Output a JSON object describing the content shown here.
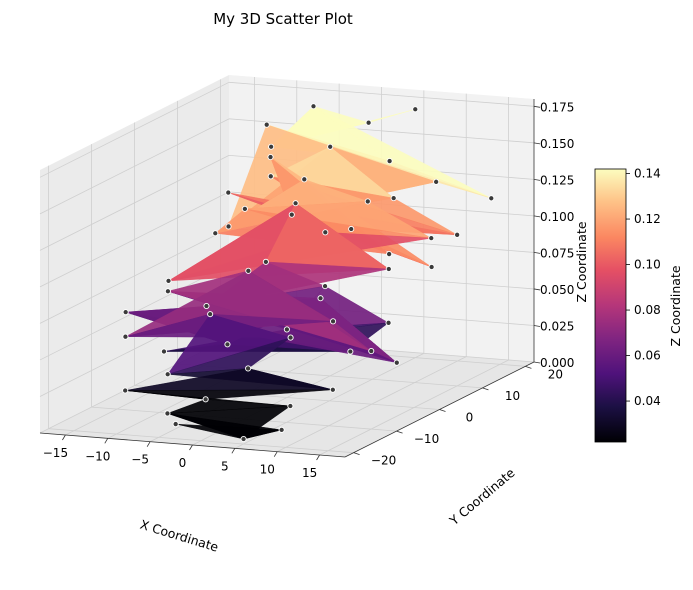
{
  "chart_data": {
    "type": "scatter",
    "title": "My 3D Scatter Plot",
    "xlabel": "X Coordinate",
    "ylabel": "Y Coordinate",
    "zlabel": "Z Coordinate",
    "xlim": [
      -18,
      18
    ],
    "ylim": [
      -22,
      22
    ],
    "zlim": [
      0,
      0.18
    ],
    "xticks": [
      "−15",
      "−10",
      "−5",
      "0",
      "5",
      "10",
      "15"
    ],
    "xtick_values": [
      -15,
      -10,
      -5,
      0,
      5,
      10,
      15
    ],
    "yticks": [
      "−20",
      "−10",
      "0",
      "10",
      "20"
    ],
    "ytick_values": [
      -20,
      -10,
      0,
      10,
      20
    ],
    "zticks": [
      "0.000",
      "0.025",
      "0.050",
      "0.075",
      "0.100",
      "0.125",
      "0.150",
      "0.175"
    ],
    "ztick_values": [
      0,
      0.025,
      0.05,
      0.075,
      0.1,
      0.125,
      0.15,
      0.175
    ],
    "grid": true,
    "surface": "triangulated surface through the scattered points, colored by Z",
    "colormap": "magma",
    "colorbar": {
      "label": "Z Coordinate",
      "range": [
        0.022,
        0.142
      ],
      "ticks": [
        "0.04",
        "0.06",
        "0.08",
        "0.10",
        "0.12",
        "0.14"
      ],
      "tick_values": [
        0.04,
        0.06,
        0.08,
        0.1,
        0.12,
        0.14
      ]
    },
    "marker_color": "#3a3a3a",
    "marker_edge": "#ffffff",
    "points": [
      {
        "x": -14,
        "y": 14,
        "z": 0.09
      },
      {
        "x": -12,
        "y": 10,
        "z": 0.12
      },
      {
        "x": -10,
        "y": 15,
        "z": 0.16
      },
      {
        "x": -8,
        "y": 12,
        "z": 0.13
      },
      {
        "x": -6,
        "y": 18,
        "z": 0.17
      },
      {
        "x": -4,
        "y": 9,
        "z": 0.11
      },
      {
        "x": -2,
        "y": 14,
        "z": 0.15
      },
      {
        "x": 0,
        "y": 19,
        "z": 0.16
      },
      {
        "x": 2,
        "y": 11,
        "z": 0.1
      },
      {
        "x": 4,
        "y": 16,
        "z": 0.14
      },
      {
        "x": 6,
        "y": 13,
        "z": 0.12
      },
      {
        "x": 8,
        "y": 8,
        "z": 0.09
      },
      {
        "x": 10,
        "y": 15,
        "z": 0.13
      },
      {
        "x": 12,
        "y": 10,
        "z": 0.08
      },
      {
        "x": 14,
        "y": 12,
        "z": 0.1
      },
      {
        "x": -15,
        "y": 2,
        "z": 0.07
      },
      {
        "x": -13,
        "y": -3,
        "z": 0.03
      },
      {
        "x": -11,
        "y": 5,
        "z": 0.1
      },
      {
        "x": -9,
        "y": -1,
        "z": 0.06
      },
      {
        "x": -7,
        "y": 4,
        "z": 0.12
      },
      {
        "x": -5,
        "y": -4,
        "z": 0.04
      },
      {
        "x": -3,
        "y": 1,
        "z": 0.09
      },
      {
        "x": -1,
        "y": 6,
        "z": 0.14
      },
      {
        "x": 1,
        "y": -2,
        "z": 0.05
      },
      {
        "x": 3,
        "y": 3,
        "z": 0.11
      },
      {
        "x": 5,
        "y": -1,
        "z": 0.08
      },
      {
        "x": 7,
        "y": 5,
        "z": 0.13
      },
      {
        "x": 9,
        "y": -3,
        "z": 0.04
      },
      {
        "x": 11,
        "y": 2,
        "z": 0.09
      },
      {
        "x": 13,
        "y": -2,
        "z": 0.06
      },
      {
        "x": 15,
        "y": 4,
        "z": 0.11
      },
      {
        "x": -14,
        "y": -10,
        "z": 0.05
      },
      {
        "x": -12,
        "y": -14,
        "z": 0.02
      },
      {
        "x": -10,
        "y": -8,
        "z": 0.08
      },
      {
        "x": -8,
        "y": -12,
        "z": 0.03
      },
      {
        "x": -6,
        "y": -16,
        "z": 0.01
      },
      {
        "x": -4,
        "y": -10,
        "z": 0.07
      },
      {
        "x": -2,
        "y": -15,
        "z": 0.02
      },
      {
        "x": 0,
        "y": -9,
        "z": 0.1
      },
      {
        "x": 2,
        "y": -13,
        "z": 0.04
      },
      {
        "x": 4,
        "y": -18,
        "z": 0.0
      },
      {
        "x": 6,
        "y": -11,
        "z": 0.06
      },
      {
        "x": 8,
        "y": -15,
        "z": 0.02
      },
      {
        "x": 10,
        "y": -9,
        "z": 0.07
      },
      {
        "x": 12,
        "y": -13,
        "z": 0.03
      },
      {
        "x": 14,
        "y": -8,
        "z": 0.05
      },
      {
        "x": -11,
        "y": 18,
        "z": 0.14
      },
      {
        "x": 5,
        "y": 20,
        "z": 0.17
      },
      {
        "x": 16,
        "y": 16,
        "z": 0.12
      },
      {
        "x": -16,
        "y": -6,
        "z": 0.06
      },
      {
        "x": 16,
        "y": -6,
        "z": 0.04
      },
      {
        "x": -3,
        "y": -20,
        "z": 0.01
      },
      {
        "x": 9,
        "y": -19,
        "z": 0.01
      },
      {
        "x": 0,
        "y": 2,
        "z": 0.13
      },
      {
        "x": -6,
        "y": 8,
        "z": 0.15
      },
      {
        "x": 7,
        "y": -6,
        "z": 0.08
      }
    ]
  }
}
